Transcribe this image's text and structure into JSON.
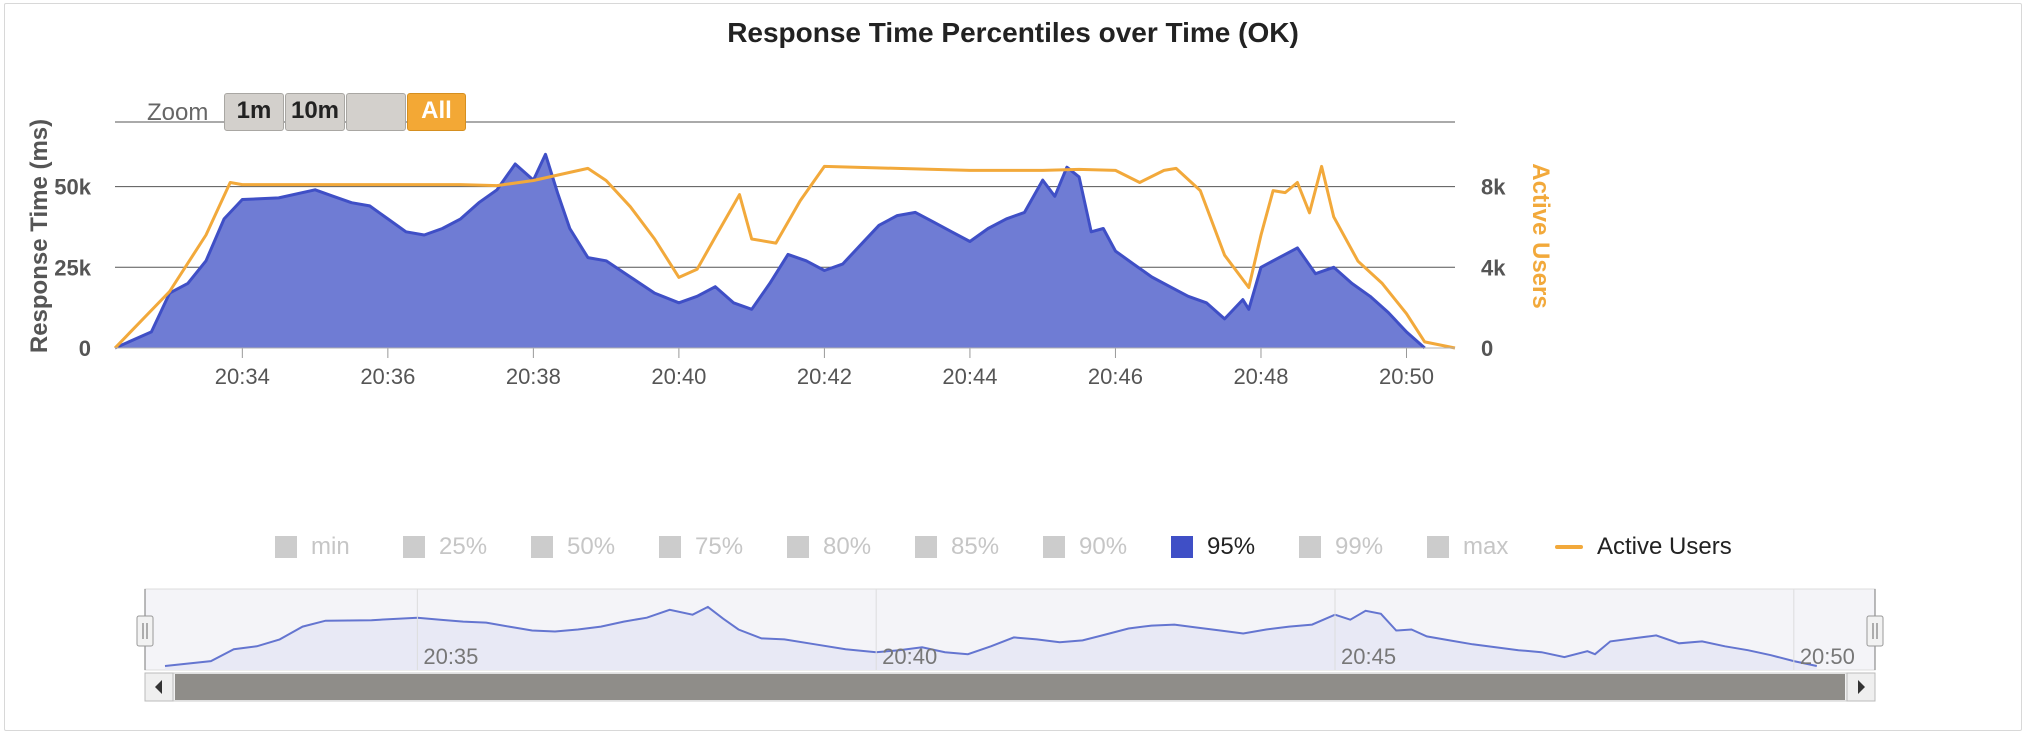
{
  "chart_data": {
    "type": "area",
    "title": "Response Time Percentiles over Time (OK)",
    "ylabel": "Response Time (ms)",
    "y2label": "Active Users",
    "ylim": [
      0,
      70000
    ],
    "y2lim": [
      0,
      11200
    ],
    "yticks": [
      "0",
      "25k",
      "50k"
    ],
    "y2ticks": [
      "0",
      "4k",
      "8k"
    ],
    "xrange": [
      "20:32:15",
      "20:50:40"
    ],
    "xticks": [
      "20:34",
      "20:36",
      "20:38",
      "20:40",
      "20:42",
      "20:44",
      "20:46",
      "20:48",
      "20:50"
    ],
    "grid": true,
    "legend_position": "bottom",
    "colors": {
      "response": "#3f4fc6",
      "users": "#f2a93b"
    },
    "series": [
      {
        "name": "95%",
        "axis": "left",
        "kind": "area",
        "x": [
          "20:32:15",
          "20:32:45",
          "20:33:00",
          "20:33:15",
          "20:33:30",
          "20:33:45",
          "20:34:00",
          "20:34:30",
          "20:35:00",
          "20:35:15",
          "20:35:30",
          "20:35:45",
          "20:36:00",
          "20:36:15",
          "20:36:30",
          "20:36:45",
          "20:37:00",
          "20:37:15",
          "20:37:30",
          "20:37:45",
          "20:38:00",
          "20:38:10",
          "20:38:20",
          "20:38:30",
          "20:38:45",
          "20:39:00",
          "20:39:20",
          "20:39:40",
          "20:40:00",
          "20:40:15",
          "20:40:30",
          "20:40:45",
          "20:41:00",
          "20:41:15",
          "20:41:30",
          "20:41:45",
          "20:42:00",
          "20:42:15",
          "20:42:30",
          "20:42:45",
          "20:43:00",
          "20:43:15",
          "20:43:30",
          "20:43:45",
          "20:44:00",
          "20:44:15",
          "20:44:30",
          "20:44:45",
          "20:45:00",
          "20:45:10",
          "20:45:20",
          "20:45:30",
          "20:45:40",
          "20:45:50",
          "20:46:00",
          "20:46:15",
          "20:46:30",
          "20:46:45",
          "20:47:00",
          "20:47:15",
          "20:47:30",
          "20:47:45",
          "20:47:50",
          "20:48:00",
          "20:48:15",
          "20:48:30",
          "20:48:45",
          "20:49:00",
          "20:49:15",
          "20:49:30",
          "20:49:45",
          "20:50:00",
          "20:50:15"
        ],
        "y": [
          0,
          5000,
          17000,
          20000,
          27000,
          40000,
          46000,
          46500,
          49000,
          47000,
          45000,
          44000,
          40000,
          36000,
          35000,
          37000,
          40000,
          45000,
          49000,
          57000,
          52000,
          60000,
          48000,
          37000,
          28000,
          27000,
          22000,
          17000,
          14000,
          16000,
          19000,
          14000,
          12000,
          20000,
          29000,
          27000,
          24000,
          26000,
          32000,
          38000,
          41000,
          42000,
          39000,
          36000,
          33000,
          37000,
          40000,
          42000,
          52000,
          47000,
          56000,
          53000,
          36000,
          37000,
          30000,
          26000,
          22000,
          19000,
          16000,
          14000,
          9000,
          15000,
          12000,
          25000,
          28000,
          31000,
          23000,
          25000,
          20000,
          16000,
          11000,
          5000,
          0
        ]
      },
      {
        "name": "Active Users",
        "axis": "right",
        "kind": "line",
        "x": [
          "20:32:15",
          "20:33:00",
          "20:33:30",
          "20:33:50",
          "20:34:00",
          "20:35:00",
          "20:36:00",
          "20:37:00",
          "20:37:30",
          "20:38:00",
          "20:38:30",
          "20:38:45",
          "20:39:00",
          "20:39:20",
          "20:39:40",
          "20:40:00",
          "20:40:15",
          "20:40:30",
          "20:40:50",
          "20:41:00",
          "20:41:20",
          "20:41:40",
          "20:42:00",
          "20:43:00",
          "20:44:00",
          "20:45:00",
          "20:45:30",
          "20:46:00",
          "20:46:20",
          "20:46:40",
          "20:46:50",
          "20:47:10",
          "20:47:30",
          "20:47:50",
          "20:48:00",
          "20:48:10",
          "20:48:20",
          "20:48:30",
          "20:48:40",
          "20:48:50",
          "20:49:00",
          "20:49:20",
          "20:49:40",
          "20:50:00",
          "20:50:15",
          "20:50:40"
        ],
        "y": [
          0,
          2800,
          5600,
          8200,
          8100,
          8100,
          8100,
          8100,
          8050,
          8300,
          8700,
          8900,
          8300,
          7000,
          5400,
          3500,
          3900,
          5500,
          7600,
          5400,
          5200,
          7300,
          9000,
          8900,
          8800,
          8800,
          8850,
          8800,
          8200,
          8800,
          8900,
          7800,
          4600,
          3000,
          5600,
          7800,
          7700,
          8200,
          6700,
          9000,
          6500,
          4300,
          3200,
          1700,
          300,
          0
        ]
      }
    ],
    "disabled_series": [
      "min",
      "25%",
      "50%",
      "75%",
      "80%",
      "85%",
      "90%",
      "99%",
      "max"
    ]
  },
  "ui": {
    "zoom_label": "Zoom",
    "zoom_buttons": [
      "1m",
      "10m",
      "",
      "All"
    ],
    "selected_zoom": "All",
    "legend": [
      "min",
      "25%",
      "50%",
      "75%",
      "80%",
      "85%",
      "90%",
      "95%",
      "99%",
      "max",
      "Active Users"
    ],
    "legend_active": [
      "95%",
      "Active Users"
    ],
    "navigator_ticks": [
      "20:35",
      "20:40",
      "20:45",
      "20:50"
    ]
  }
}
